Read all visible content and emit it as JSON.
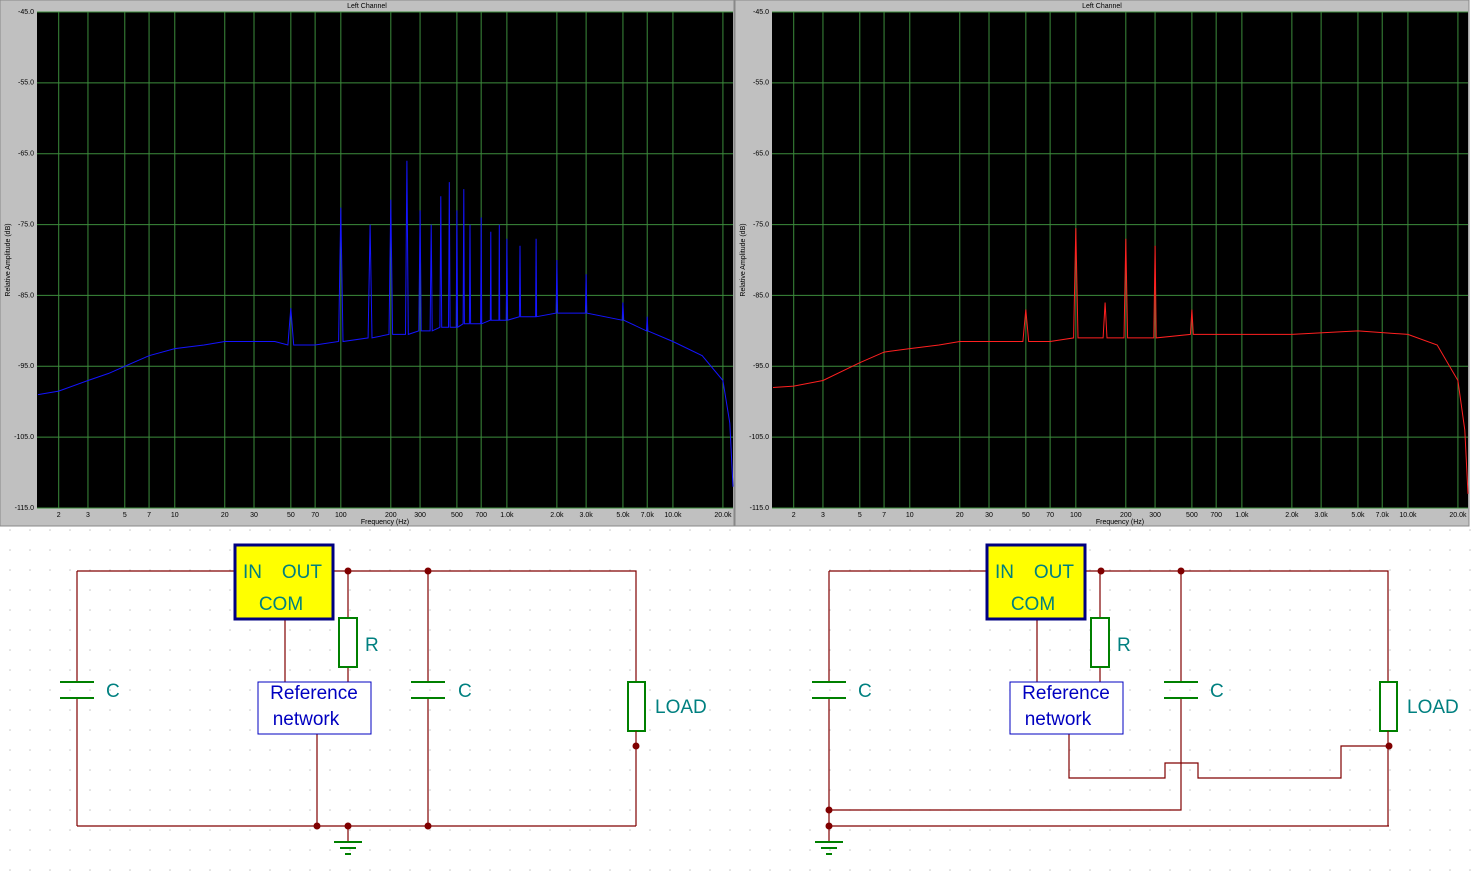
{
  "chart_data": [
    {
      "type": "line",
      "title": "Left Channel",
      "y_label": "Relative Amplitude (dB)",
      "x_label": "Frequency (Hz)",
      "xscale": "log",
      "grid": true,
      "xlim": [
        1.48,
        23000
      ],
      "ylim": [
        -115,
        -45
      ],
      "yticks": [
        {
          "value": -45,
          "label": "-45.0"
        },
        {
          "value": -55,
          "label": "-55.0"
        },
        {
          "value": -65,
          "label": "-65.0"
        },
        {
          "value": -75,
          "label": "-75.0"
        },
        {
          "value": -85,
          "label": "-85.0"
        },
        {
          "value": -95,
          "label": "-95.0"
        },
        {
          "value": -105,
          "label": "-105.0"
        },
        {
          "value": -115,
          "label": "-115.0"
        }
      ],
      "xticks": [
        2,
        3,
        5,
        7,
        10,
        20,
        30,
        50,
        70,
        100,
        200,
        300,
        500,
        700,
        {
          "value": 1000,
          "label": "1.0k"
        },
        {
          "value": 2000,
          "label": "2.0k"
        },
        {
          "value": 3000,
          "label": "3.0k"
        },
        {
          "value": 5000,
          "label": "5.0k"
        },
        {
          "value": 7000,
          "label": "7.0k"
        },
        {
          "value": 10000,
          "label": "10.0k"
        },
        {
          "value": 20000,
          "label": "20.0k"
        }
      ],
      "x": [
        1.5,
        2,
        3,
        4,
        5,
        7,
        10,
        15,
        20,
        30,
        40,
        48,
        50,
        52,
        70,
        97,
        100,
        103,
        146,
        150,
        154,
        195,
        200,
        205,
        245,
        250,
        255,
        295,
        300,
        305,
        345,
        350,
        355,
        395,
        400,
        405,
        445,
        450,
        455,
        495,
        500,
        505,
        545,
        550,
        555,
        595,
        600,
        605,
        695,
        700,
        705,
        795,
        800,
        805,
        895,
        900,
        905,
        990,
        1000,
        1010,
        1190,
        1200,
        1210,
        1490,
        1500,
        1510,
        1980,
        2000,
        2020,
        2970,
        3000,
        3030,
        4950,
        5000,
        5050,
        6930,
        7000,
        7070,
        10000,
        15000,
        20000,
        22000,
        23000
      ],
      "series": [
        {
          "color": "#1414ff",
          "values": [
            -99,
            -98.5,
            -97,
            -96,
            -95,
            -93.5,
            -92.5,
            -92,
            -91.5,
            -91.5,
            -91.5,
            -92,
            -86.8,
            -92,
            -92,
            -91.5,
            -72.6,
            -91.5,
            -91,
            -75,
            -91,
            -90.5,
            -71.5,
            -90.5,
            -90.5,
            -66,
            -90.5,
            -90,
            -73,
            -90,
            -90,
            -75,
            -90,
            -89.5,
            -71,
            -89.5,
            -89.5,
            -69,
            -89.5,
            -89.5,
            -73,
            -89.5,
            -89,
            -70,
            -89,
            -89,
            -75,
            -89,
            -89,
            -74,
            -89,
            -88.5,
            -76,
            -88.5,
            -88.5,
            -75,
            -88.5,
            -88.5,
            -77,
            -88.5,
            -88,
            -78,
            -88,
            -88,
            -77,
            -88,
            -87.5,
            -80,
            -87.5,
            -87.5,
            -82,
            -87.5,
            -88.5,
            -86,
            -88.5,
            -90,
            -88,
            -90,
            -91.5,
            -93.5,
            -97,
            -103,
            -112
          ]
        }
      ]
    },
    {
      "type": "line",
      "title": "Left Channel",
      "y_label": "Relative Amplitude (dB)",
      "x_label": "Frequency (Hz)",
      "xscale": "log",
      "grid": true,
      "xlim": [
        1.48,
        23000
      ],
      "ylim": [
        -115,
        -45
      ],
      "yticks": [
        {
          "value": -45,
          "label": "-45.0"
        },
        {
          "value": -55,
          "label": "-55.0"
        },
        {
          "value": -65,
          "label": "-65.0"
        },
        {
          "value": -75,
          "label": "-75.0"
        },
        {
          "value": -85,
          "label": "-85.0"
        },
        {
          "value": -95,
          "label": "-95.0"
        },
        {
          "value": -105,
          "label": "-105.0"
        },
        {
          "value": -115,
          "label": "-115.0"
        }
      ],
      "xticks": [
        2,
        3,
        5,
        7,
        10,
        20,
        30,
        50,
        70,
        100,
        200,
        300,
        500,
        700,
        {
          "value": 1000,
          "label": "1.0k"
        },
        {
          "value": 2000,
          "label": "2.0k"
        },
        {
          "value": 3000,
          "label": "3.0k"
        },
        {
          "value": 5000,
          "label": "5.0k"
        },
        {
          "value": 7000,
          "label": "7.0k"
        },
        {
          "value": 10000,
          "label": "10.0k"
        },
        {
          "value": 20000,
          "label": "20.0k"
        }
      ],
      "x": [
        1.5,
        2,
        3,
        5,
        7,
        10,
        15,
        20,
        30,
        48,
        50,
        52,
        70,
        97,
        100,
        103,
        146,
        150,
        154,
        195,
        200,
        205,
        295,
        300,
        305,
        490,
        500,
        510,
        1000,
        2000,
        5000,
        10000,
        15000,
        20000,
        22000,
        23000
      ],
      "series": [
        {
          "color": "#ff2020",
          "values": [
            -98,
            -97.8,
            -97,
            -94.5,
            -93,
            -92.5,
            -92,
            -91.5,
            -91.5,
            -91.5,
            -87,
            -91.5,
            -91.5,
            -91,
            -75.5,
            -91,
            -91,
            -86,
            -91,
            -91,
            -77,
            -91,
            -91,
            -78,
            -91,
            -90.5,
            -87,
            -90.5,
            -90.5,
            -90.5,
            -90,
            -90.5,
            -92,
            -97,
            -104,
            -113
          ]
        }
      ]
    }
  ],
  "schematics": [
    {
      "regulator": {
        "in": "IN",
        "out": "OUT",
        "com": "COM"
      },
      "resistor": "R",
      "reference": [
        "Reference",
        "network"
      ],
      "capacitors": [
        "C",
        "C"
      ],
      "load": "LOAD"
    },
    {
      "regulator": {
        "in": "IN",
        "out": "OUT",
        "com": "COM"
      },
      "resistor": "R",
      "reference": [
        "Reference",
        "network"
      ],
      "capacitors": [
        "C",
        "C"
      ],
      "load": "LOAD"
    }
  ]
}
